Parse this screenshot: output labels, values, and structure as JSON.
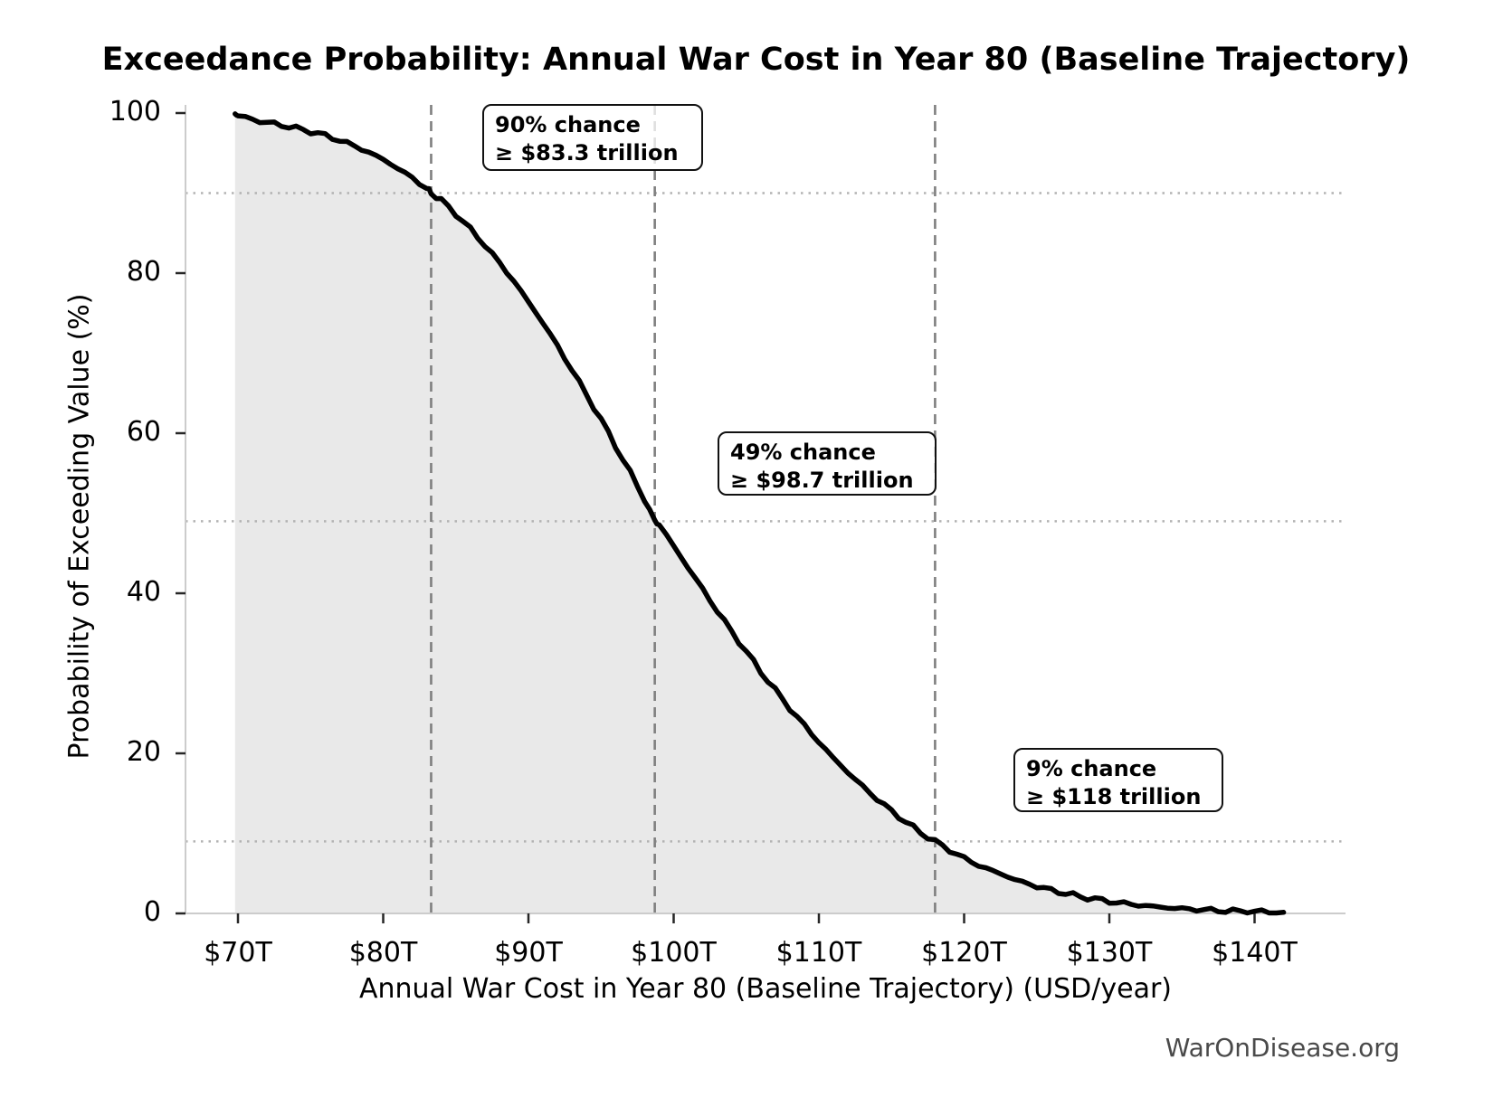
{
  "title": "Exceedance Probability: Annual War Cost in Year 80 (Baseline Trajectory)",
  "watermark": "WarOnDisease.org",
  "chart_data": {
    "type": "area",
    "subtype": "exceedance-survival-curve",
    "title": "Exceedance Probability: Annual War Cost in Year 80 (Baseline Trajectory)",
    "xlabel": "Annual War Cost in Year 80 (Baseline Trajectory) (USD/year)",
    "ylabel": "Probability of Exceeding Value (%)",
    "x_tick_values": [
      70,
      80,
      90,
      100,
      110,
      120,
      130,
      140
    ],
    "x_tick_labels": [
      "$70T",
      "$80T",
      "$90T",
      "$100T",
      "$110T",
      "$120T",
      "$130T",
      "$140T"
    ],
    "y_tick_values": [
      0,
      20,
      40,
      60,
      80,
      100
    ],
    "y_tick_labels": [
      "0",
      "20",
      "40",
      "60",
      "80",
      "100"
    ],
    "xlim_trillions": [
      66.4,
      146.3
    ],
    "ylim": [
      0,
      100
    ],
    "x_unit": "trillion USD per year",
    "y_unit": "percent",
    "legend": false,
    "guides": {
      "horizontal_dotted_probabilities": [
        90,
        49,
        9
      ],
      "vertical_dashed_values_trillions": [
        83.3,
        98.7,
        118
      ]
    },
    "colors": {
      "curve": "#000000",
      "area_fill": "#e9e9e9",
      "dashed_guide": "#7f7f7f",
      "dotted_guide": "#b3b3b3",
      "spine": "#cccccc",
      "tick": "#262626",
      "watermark": "#4a4a4a"
    },
    "series": [
      {
        "name": "Exceedance probability of annual war cost",
        "points": [
          [
            69.8,
            99.9
          ],
          [
            70,
            99.7
          ],
          [
            71,
            99.2
          ],
          [
            72,
            98.8
          ],
          [
            73,
            98.5
          ],
          [
            74,
            98.1
          ],
          [
            75,
            97.7
          ],
          [
            76,
            97.2
          ],
          [
            77,
            96.6
          ],
          [
            78,
            95.9
          ],
          [
            79,
            95.1
          ],
          [
            80,
            94.2
          ],
          [
            81,
            93.1
          ],
          [
            82,
            91.9
          ],
          [
            83,
            90.6
          ],
          [
            83.3,
            90.0
          ],
          [
            84,
            89.1
          ],
          [
            85,
            87.4
          ],
          [
            86,
            85.5
          ],
          [
            87,
            83.5
          ],
          [
            88,
            81.3
          ],
          [
            89,
            79.0
          ],
          [
            90,
            76.4
          ],
          [
            91,
            73.8
          ],
          [
            92,
            70.9
          ],
          [
            93,
            67.9
          ],
          [
            94,
            64.8
          ],
          [
            95,
            61.7
          ],
          [
            96,
            58.4
          ],
          [
            97,
            55.1
          ],
          [
            98,
            51.7
          ],
          [
            98.7,
            49.0
          ],
          [
            99,
            48.6
          ],
          [
            100,
            45.9
          ],
          [
            101,
            43.2
          ],
          [
            102,
            40.5
          ],
          [
            103,
            37.8
          ],
          [
            104,
            35.2
          ],
          [
            105,
            32.7
          ],
          [
            106,
            30.2
          ],
          [
            107,
            27.9
          ],
          [
            108,
            25.6
          ],
          [
            109,
            23.5
          ],
          [
            110,
            21.4
          ],
          [
            111,
            19.4
          ],
          [
            112,
            17.6
          ],
          [
            113,
            15.9
          ],
          [
            114,
            14.3
          ],
          [
            115,
            12.8
          ],
          [
            116,
            11.4
          ],
          [
            117,
            10.1
          ],
          [
            118,
            9.0
          ],
          [
            119,
            7.9
          ],
          [
            120,
            6.9
          ],
          [
            121,
            6.0
          ],
          [
            122,
            5.3
          ],
          [
            123,
            4.6
          ],
          [
            124,
            3.9
          ],
          [
            125,
            3.4
          ],
          [
            126,
            2.9
          ],
          [
            127,
            2.5
          ],
          [
            128,
            2.1
          ],
          [
            129,
            1.8
          ],
          [
            130,
            1.5
          ],
          [
            131,
            1.25
          ],
          [
            132,
            1.04
          ],
          [
            133,
            0.87
          ],
          [
            134,
            0.72
          ],
          [
            135,
            0.59
          ],
          [
            136,
            0.49
          ],
          [
            137,
            0.4
          ],
          [
            138,
            0.32
          ],
          [
            139,
            0.26
          ],
          [
            140,
            0.21
          ],
          [
            141,
            0.17
          ],
          [
            142,
            0.13
          ]
        ]
      }
    ],
    "annotations": [
      {
        "line1": "90% chance",
        "line2": "≥ $83.3 trillion",
        "value_trillions": 83.3,
        "probability_pct": 90
      },
      {
        "line1": "49% chance",
        "line2": "≥ $98.7 trillion",
        "value_trillions": 98.7,
        "probability_pct": 49
      },
      {
        "line1": "9% chance",
        "line2": "≥ $118 trillion",
        "value_trillions": 118,
        "probability_pct": 9
      }
    ]
  }
}
